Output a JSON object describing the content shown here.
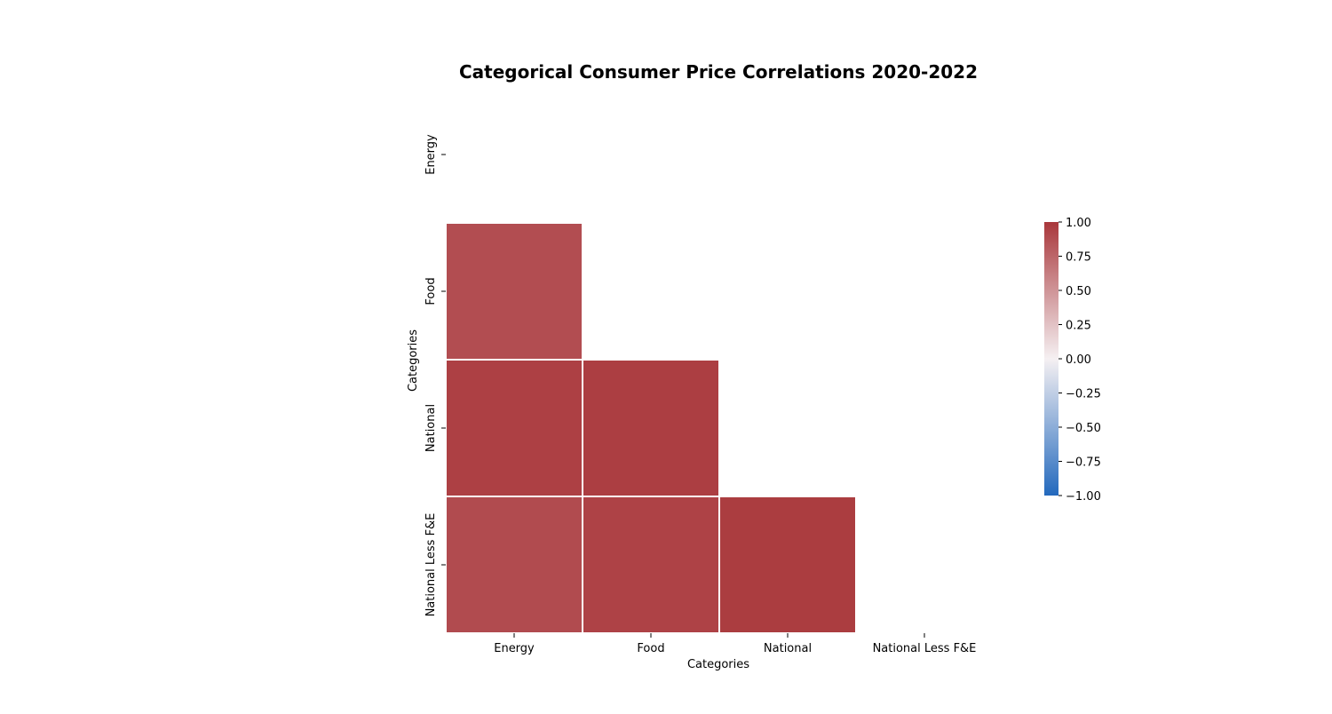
{
  "chart_data": {
    "type": "heatmap",
    "title": "Categorical Consumer Price Correlations 2020-2022",
    "xlabel": "Categories",
    "ylabel": "Categories",
    "x_categories": [
      "Energy",
      "Food",
      "National",
      "National Less F&E"
    ],
    "y_categories": [
      "Energy",
      "Food",
      "National",
      "National Less F&E"
    ],
    "mask": "upper-triangle-including-diagonal",
    "values": [
      [
        null,
        null,
        null,
        null
      ],
      [
        0.88,
        null,
        null,
        null
      ],
      [
        0.95,
        0.96,
        null,
        null
      ],
      [
        0.89,
        0.94,
        0.97,
        null
      ]
    ],
    "colorbar": {
      "min": -1.0,
      "max": 1.0,
      "ticks": [
        -1.0,
        -0.75,
        -0.5,
        -0.25,
        0.0,
        0.25,
        0.5,
        0.75,
        1.0
      ],
      "tick_labels": [
        "−1.00",
        "−0.75",
        "−0.50",
        "−0.25",
        "0.00",
        "0.25",
        "0.50",
        "0.75",
        "1.00"
      ],
      "colormap": "vlag",
      "colors": {
        "low": "#2369bd",
        "mid": "#f5f0f2",
        "high": "#a9373b"
      }
    },
    "grid": false,
    "cell_border_color": "#ffffff"
  }
}
